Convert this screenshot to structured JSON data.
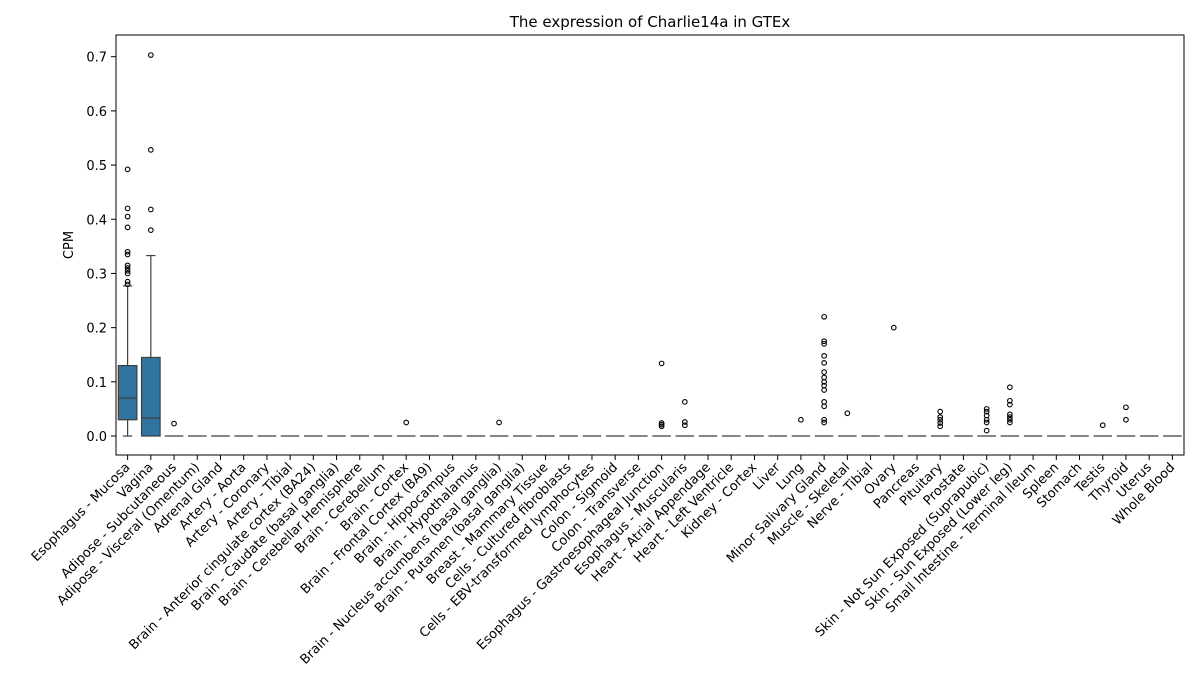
{
  "chart_data": {
    "type": "box",
    "title": "The expression of Charlie14a in GTEx",
    "xlabel": "",
    "ylabel": "CPM",
    "ylim": [
      -0.035,
      0.74
    ],
    "yticks": [
      "0.0",
      "0.1",
      "0.2",
      "0.3",
      "0.4",
      "0.5",
      "0.6",
      "0.7"
    ],
    "ytick_values": [
      0.0,
      0.1,
      0.2,
      0.3,
      0.4,
      0.5,
      0.6,
      0.7
    ],
    "box_color": "#3274a1",
    "grid": false,
    "categories": [
      {
        "name": "Esophagus - Mucosa",
        "q1": 0.03,
        "median": 0.07,
        "q3": 0.13,
        "whisker_low": 0.0,
        "whisker_high": 0.277,
        "outliers": [
          0.28,
          0.285,
          0.3,
          0.305,
          0.31,
          0.315,
          0.335,
          0.34,
          0.385,
          0.405,
          0.42,
          0.492
        ]
      },
      {
        "name": "Vagina",
        "q1": 0.0,
        "median": 0.033,
        "q3": 0.145,
        "whisker_low": 0.0,
        "whisker_high": 0.333,
        "outliers": [
          0.38,
          0.418,
          0.528,
          0.703
        ]
      },
      {
        "name": "Adipose - Subcutaneous",
        "q1": 0,
        "median": 0,
        "q3": 0,
        "whisker_low": 0,
        "whisker_high": 0,
        "outliers": [
          0.023
        ]
      },
      {
        "name": "Adipose - Visceral (Omentum)",
        "q1": 0,
        "median": 0,
        "q3": 0,
        "whisker_low": 0,
        "whisker_high": 0,
        "outliers": []
      },
      {
        "name": "Adrenal Gland",
        "q1": 0,
        "median": 0,
        "q3": 0,
        "whisker_low": 0,
        "whisker_high": 0,
        "outliers": []
      },
      {
        "name": "Artery - Aorta",
        "q1": 0,
        "median": 0,
        "q3": 0,
        "whisker_low": 0,
        "whisker_high": 0,
        "outliers": []
      },
      {
        "name": "Artery - Coronary",
        "q1": 0,
        "median": 0,
        "q3": 0,
        "whisker_low": 0,
        "whisker_high": 0,
        "outliers": []
      },
      {
        "name": "Artery - Tibial",
        "q1": 0,
        "median": 0,
        "q3": 0,
        "whisker_low": 0,
        "whisker_high": 0,
        "outliers": []
      },
      {
        "name": "Brain - Anterior cingulate cortex (BA24)",
        "q1": 0,
        "median": 0,
        "q3": 0,
        "whisker_low": 0,
        "whisker_high": 0,
        "outliers": []
      },
      {
        "name": "Brain - Caudate (basal ganglia)",
        "q1": 0,
        "median": 0,
        "q3": 0,
        "whisker_low": 0,
        "whisker_high": 0,
        "outliers": []
      },
      {
        "name": "Brain - Cerebellar Hemisphere",
        "q1": 0,
        "median": 0,
        "q3": 0,
        "whisker_low": 0,
        "whisker_high": 0,
        "outliers": []
      },
      {
        "name": "Brain - Cerebellum",
        "q1": 0,
        "median": 0,
        "q3": 0,
        "whisker_low": 0,
        "whisker_high": 0,
        "outliers": []
      },
      {
        "name": "Brain - Cortex",
        "q1": 0,
        "median": 0,
        "q3": 0,
        "whisker_low": 0,
        "whisker_high": 0,
        "outliers": [
          0.025
        ]
      },
      {
        "name": "Brain - Frontal Cortex (BA9)",
        "q1": 0,
        "median": 0,
        "q3": 0,
        "whisker_low": 0,
        "whisker_high": 0,
        "outliers": []
      },
      {
        "name": "Brain - Hippocampus",
        "q1": 0,
        "median": 0,
        "q3": 0,
        "whisker_low": 0,
        "whisker_high": 0,
        "outliers": []
      },
      {
        "name": "Brain - Hypothalamus",
        "q1": 0,
        "median": 0,
        "q3": 0,
        "whisker_low": 0,
        "whisker_high": 0,
        "outliers": []
      },
      {
        "name": "Brain - Nucleus accumbens (basal ganglia)",
        "q1": 0,
        "median": 0,
        "q3": 0,
        "whisker_low": 0,
        "whisker_high": 0,
        "outliers": [
          0.025
        ]
      },
      {
        "name": "Brain - Putamen (basal ganglia)",
        "q1": 0,
        "median": 0,
        "q3": 0,
        "whisker_low": 0,
        "whisker_high": 0,
        "outliers": []
      },
      {
        "name": "Breast - Mammary Tissue",
        "q1": 0,
        "median": 0,
        "q3": 0,
        "whisker_low": 0,
        "whisker_high": 0,
        "outliers": []
      },
      {
        "name": "Cells - Cultured fibroblasts",
        "q1": 0,
        "median": 0,
        "q3": 0,
        "whisker_low": 0,
        "whisker_high": 0,
        "outliers": []
      },
      {
        "name": "Cells - EBV-transformed lymphocytes",
        "q1": 0,
        "median": 0,
        "q3": 0,
        "whisker_low": 0,
        "whisker_high": 0,
        "outliers": []
      },
      {
        "name": "Colon - Sigmoid",
        "q1": 0,
        "median": 0,
        "q3": 0,
        "whisker_low": 0,
        "whisker_high": 0,
        "outliers": []
      },
      {
        "name": "Colon - Transverse",
        "q1": 0,
        "median": 0,
        "q3": 0,
        "whisker_low": 0,
        "whisker_high": 0,
        "outliers": []
      },
      {
        "name": "Esophagus - Gastroesophageal Junction",
        "q1": 0,
        "median": 0,
        "q3": 0,
        "whisker_low": 0,
        "whisker_high": 0,
        "outliers": [
          0.018,
          0.021,
          0.024,
          0.134
        ]
      },
      {
        "name": "Esophagus - Muscularis",
        "q1": 0,
        "median": 0,
        "q3": 0,
        "whisker_low": 0,
        "whisker_high": 0,
        "outliers": [
          0.02,
          0.026,
          0.063
        ]
      },
      {
        "name": "Heart - Atrial Appendage",
        "q1": 0,
        "median": 0,
        "q3": 0,
        "whisker_low": 0,
        "whisker_high": 0,
        "outliers": []
      },
      {
        "name": "Heart - Left Ventricle",
        "q1": 0,
        "median": 0,
        "q3": 0,
        "whisker_low": 0,
        "whisker_high": 0,
        "outliers": []
      },
      {
        "name": "Kidney - Cortex",
        "q1": 0,
        "median": 0,
        "q3": 0,
        "whisker_low": 0,
        "whisker_high": 0,
        "outliers": []
      },
      {
        "name": "Liver",
        "q1": 0,
        "median": 0,
        "q3": 0,
        "whisker_low": 0,
        "whisker_high": 0,
        "outliers": []
      },
      {
        "name": "Lung",
        "q1": 0,
        "median": 0,
        "q3": 0,
        "whisker_low": 0,
        "whisker_high": 0,
        "outliers": [
          0.03
        ]
      },
      {
        "name": "Minor Salivary Gland",
        "q1": 0,
        "median": 0,
        "q3": 0,
        "whisker_low": 0,
        "whisker_high": 0,
        "outliers": [
          0.025,
          0.03,
          0.055,
          0.063,
          0.085,
          0.093,
          0.1,
          0.108,
          0.118,
          0.135,
          0.148,
          0.17,
          0.175,
          0.22
        ]
      },
      {
        "name": "Muscle - Skeletal",
        "q1": 0,
        "median": 0,
        "q3": 0,
        "whisker_low": 0,
        "whisker_high": 0,
        "outliers": [
          0.042
        ]
      },
      {
        "name": "Nerve - Tibial",
        "q1": 0,
        "median": 0,
        "q3": 0,
        "whisker_low": 0,
        "whisker_high": 0,
        "outliers": []
      },
      {
        "name": "Ovary",
        "q1": 0,
        "median": 0,
        "q3": 0,
        "whisker_low": 0,
        "whisker_high": 0,
        "outliers": [
          0.2
        ]
      },
      {
        "name": "Pancreas",
        "q1": 0,
        "median": 0,
        "q3": 0,
        "whisker_low": 0,
        "whisker_high": 0,
        "outliers": []
      },
      {
        "name": "Pituitary",
        "q1": 0,
        "median": 0,
        "q3": 0,
        "whisker_low": 0,
        "whisker_high": 0,
        "outliers": [
          0.018,
          0.024,
          0.03,
          0.035,
          0.045
        ]
      },
      {
        "name": "Prostate",
        "q1": 0,
        "median": 0,
        "q3": 0,
        "whisker_low": 0,
        "whisker_high": 0,
        "outliers": []
      },
      {
        "name": "Skin - Not Sun Exposed (Suprapubic)",
        "q1": 0,
        "median": 0,
        "q3": 0,
        "whisker_low": 0,
        "whisker_high": 0,
        "outliers": [
          0.01,
          0.025,
          0.03,
          0.038,
          0.045,
          0.05
        ]
      },
      {
        "name": "Skin - Sun Exposed (Lower leg)",
        "q1": 0,
        "median": 0,
        "q3": 0,
        "whisker_low": 0,
        "whisker_high": 0,
        "outliers": [
          0.025,
          0.03,
          0.035,
          0.04,
          0.058,
          0.065,
          0.09
        ]
      },
      {
        "name": "Small Intestine - Terminal Ileum",
        "q1": 0,
        "median": 0,
        "q3": 0,
        "whisker_low": 0,
        "whisker_high": 0,
        "outliers": []
      },
      {
        "name": "Spleen",
        "q1": 0,
        "median": 0,
        "q3": 0,
        "whisker_low": 0,
        "whisker_high": 0,
        "outliers": []
      },
      {
        "name": "Stomach",
        "q1": 0,
        "median": 0,
        "q3": 0,
        "whisker_low": 0,
        "whisker_high": 0,
        "outliers": []
      },
      {
        "name": "Testis",
        "q1": 0,
        "median": 0,
        "q3": 0,
        "whisker_low": 0,
        "whisker_high": 0,
        "outliers": [
          0.02
        ]
      },
      {
        "name": "Thyroid",
        "q1": 0,
        "median": 0,
        "q3": 0,
        "whisker_low": 0,
        "whisker_high": 0,
        "outliers": [
          0.03,
          0.053
        ]
      },
      {
        "name": "Uterus",
        "q1": 0,
        "median": 0,
        "q3": 0,
        "whisker_low": 0,
        "whisker_high": 0,
        "outliers": []
      },
      {
        "name": "Whole Blood",
        "q1": 0,
        "median": 0,
        "q3": 0,
        "whisker_low": 0,
        "whisker_high": 0,
        "outliers": []
      }
    ]
  }
}
